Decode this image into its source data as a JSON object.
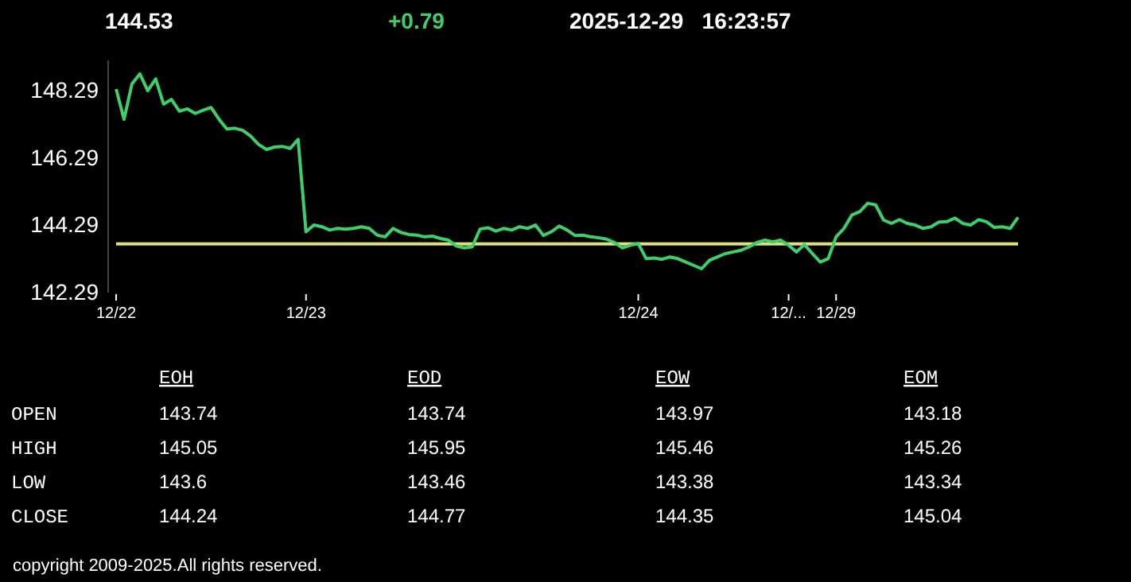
{
  "chart_data": [
    {
      "type": "line",
      "title": "144.53",
      "subtitle": "+0.79",
      "annotations": [
        "2025-12-29   16:23:57"
      ],
      "categories": [
        "12/22",
        null,
        null,
        null,
        null,
        null,
        null,
        null,
        null,
        null,
        null,
        null,
        null,
        null,
        null,
        null,
        null,
        null,
        null,
        null,
        null,
        null,
        null,
        null,
        "12/23",
        null,
        null,
        null,
        null,
        null,
        null,
        null,
        null,
        null,
        null,
        null,
        null,
        null,
        null,
        null,
        null,
        null,
        null,
        null,
        null,
        null,
        null,
        null,
        null,
        null,
        null,
        null,
        null,
        null,
        null,
        null,
        null,
        null,
        null,
        null,
        null,
        null,
        null,
        null,
        null,
        null,
        "12/24",
        null,
        null,
        null,
        null,
        null,
        null,
        null,
        null,
        null,
        null,
        null,
        null,
        null,
        null,
        null,
        null,
        null,
        null,
        "12/...",
        null,
        null,
        null,
        null,
        null,
        "12/29",
        null,
        null,
        null,
        null,
        null,
        null,
        null,
        null,
        null,
        null,
        null,
        null,
        null,
        null,
        null,
        null,
        null,
        null,
        null,
        null,
        null,
        null,
        null
      ],
      "series": [
        {
          "color": "#3ecf6a",
          "values": [
            148.35,
            147.45,
            148.5,
            148.8,
            148.3,
            148.65,
            147.9,
            148.04,
            147.69,
            147.76,
            147.62,
            147.72,
            147.8,
            147.45,
            147.16,
            147.18,
            147.12,
            146.95,
            146.7,
            146.55,
            146.62,
            146.64,
            146.58,
            146.85,
            144.1,
            144.3,
            144.25,
            144.15,
            144.2,
            144.18,
            144.2,
            144.25,
            144.2,
            144.0,
            143.95,
            144.2,
            144.08,
            144.02,
            144.0,
            143.95,
            143.97,
            143.9,
            143.85,
            143.68,
            143.62,
            143.65,
            144.18,
            144.22,
            144.12,
            144.2,
            144.15,
            144.25,
            144.2,
            144.3,
            143.99,
            144.1,
            144.27,
            144.15,
            143.99,
            144.0,
            143.95,
            143.92,
            143.88,
            143.78,
            143.62,
            143.7,
            143.75,
            143.3,
            143.32,
            143.28,
            143.35,
            143.3,
            143.2,
            143.1,
            143.0,
            143.25,
            143.35,
            143.45,
            143.5,
            143.55,
            143.65,
            143.78,
            143.85,
            143.8,
            143.85,
            143.7,
            143.5,
            143.72,
            143.45,
            143.2,
            143.3,
            143.95,
            144.2,
            144.6,
            144.7,
            144.95,
            144.9,
            144.45,
            144.35,
            144.46,
            144.35,
            144.3,
            144.2,
            144.25,
            144.39,
            144.4,
            144.51,
            144.35,
            144.3,
            144.46,
            144.4,
            144.23,
            144.25,
            144.2,
            144.53
          ]
        }
      ],
      "ylim": [
        142.29,
        149.2
      ],
      "yticks": [
        142.29,
        144.29,
        146.29,
        148.29
      ],
      "ref_lines": [
        {
          "axis": "y",
          "value": 143.74,
          "color": "#dde27e"
        }
      ]
    },
    {
      "type": "heatmap",
      "categories": [
        "EOH",
        "EOD",
        "EOW",
        "EOM"
      ],
      "y_categories": [
        "OPEN",
        "HIGH",
        "LOW",
        "CLOSE"
      ],
      "cells": [
        [
          143.74,
          143.74,
          143.97,
          143.18
        ],
        [
          145.05,
          145.95,
          145.46,
          145.26
        ],
        [
          143.6,
          143.46,
          143.38,
          143.34
        ],
        [
          144.24,
          144.77,
          144.35,
          145.04
        ]
      ],
      "data_labels": true,
      "annotations": [
        "copyright 2009-2025.All rights reserved."
      ]
    }
  ]
}
